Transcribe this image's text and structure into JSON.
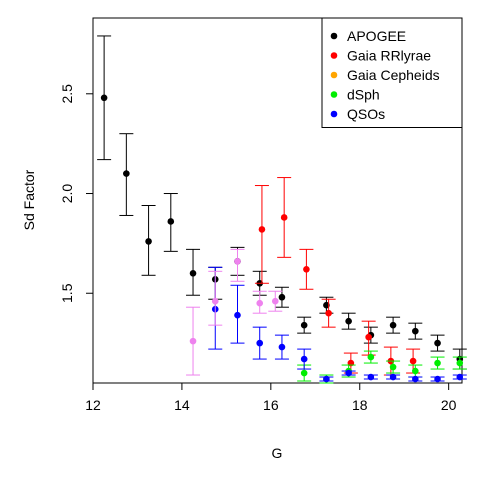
{
  "chart_data": {
    "type": "scatter",
    "title": "",
    "xlabel": "G",
    "ylabel": "Sd Factor",
    "xlim": [
      12,
      20.3
    ],
    "ylim": [
      1.05,
      2.88
    ],
    "xticks": [
      "12",
      "14",
      "16",
      "18",
      "20"
    ],
    "yticks": [
      "1.5",
      "2.0",
      "2.5"
    ],
    "legend_position": "top-right",
    "error_bars": true,
    "series": [
      {
        "name": "APOGEE",
        "color": "#000000",
        "points": [
          {
            "x": 12.25,
            "y": 2.48,
            "lo": 2.17,
            "hi": 2.79
          },
          {
            "x": 12.75,
            "y": 2.1,
            "lo": 1.89,
            "hi": 2.3
          },
          {
            "x": 13.25,
            "y": 1.76,
            "lo": 1.59,
            "hi": 1.94
          },
          {
            "x": 13.75,
            "y": 1.86,
            "lo": 1.71,
            "hi": 2.0
          },
          {
            "x": 14.25,
            "y": 1.6,
            "lo": 1.49,
            "hi": 1.72
          },
          {
            "x": 14.75,
            "y": 1.57,
            "lo": 1.47,
            "hi": 1.63
          },
          {
            "x": 15.25,
            "y": 1.66,
            "lo": 1.59,
            "hi": 1.73
          },
          {
            "x": 15.75,
            "y": 1.55,
            "lo": 1.49,
            "hi": 1.61
          },
          {
            "x": 16.25,
            "y": 1.48,
            "lo": 1.43,
            "hi": 1.53
          },
          {
            "x": 16.75,
            "y": 1.34,
            "lo": 1.3,
            "hi": 1.38
          },
          {
            "x": 17.25,
            "y": 1.44,
            "lo": 1.4,
            "hi": 1.48
          },
          {
            "x": 17.75,
            "y": 1.36,
            "lo": 1.32,
            "hi": 1.4
          },
          {
            "x": 18.25,
            "y": 1.29,
            "lo": 1.25,
            "hi": 1.33
          },
          {
            "x": 18.75,
            "y": 1.34,
            "lo": 1.3,
            "hi": 1.38
          },
          {
            "x": 19.25,
            "y": 1.31,
            "lo": 1.27,
            "hi": 1.35
          },
          {
            "x": 19.75,
            "y": 1.25,
            "lo": 1.21,
            "hi": 1.29
          },
          {
            "x": 20.25,
            "y": 1.17,
            "lo": 1.12,
            "hi": 1.22
          }
        ]
      },
      {
        "name": "Gaia RRlyrae",
        "color": "#ff0000",
        "points": [
          {
            "x": 15.8,
            "y": 1.82,
            "lo": 1.55,
            "hi": 2.04
          },
          {
            "x": 16.3,
            "y": 1.88,
            "lo": 1.68,
            "hi": 2.08
          },
          {
            "x": 16.8,
            "y": 1.62,
            "lo": 1.52,
            "hi": 1.72
          },
          {
            "x": 17.3,
            "y": 1.4,
            "lo": 1.33,
            "hi": 1.47
          },
          {
            "x": 17.8,
            "y": 1.15,
            "lo": 1.1,
            "hi": 1.2
          },
          {
            "x": 18.2,
            "y": 1.28,
            "lo": 1.19,
            "hi": 1.36
          },
          {
            "x": 18.7,
            "y": 1.16,
            "lo": 1.09,
            "hi": 1.23
          },
          {
            "x": 19.2,
            "y": 1.16,
            "lo": 1.1,
            "hi": 1.22
          }
        ]
      },
      {
        "name": "Gaia Cepheids",
        "color": "#ffa500",
        "points": []
      },
      {
        "name": "dSph",
        "color": "#00ee00",
        "points": [
          {
            "x": 16.75,
            "y": 1.1,
            "lo": 1.06,
            "hi": 1.14
          },
          {
            "x": 17.25,
            "y": 1.07,
            "lo": 1.05,
            "hi": 1.09
          },
          {
            "x": 17.75,
            "y": 1.11,
            "lo": 1.08,
            "hi": 1.14
          },
          {
            "x": 18.25,
            "y": 1.18,
            "lo": 1.15,
            "hi": 1.21
          },
          {
            "x": 18.75,
            "y": 1.13,
            "lo": 1.1,
            "hi": 1.16
          },
          {
            "x": 19.25,
            "y": 1.11,
            "lo": 1.08,
            "hi": 1.14
          },
          {
            "x": 19.75,
            "y": 1.15,
            "lo": 1.12,
            "hi": 1.18
          },
          {
            "x": 20.25,
            "y": 1.15,
            "lo": 1.12,
            "hi": 1.18
          }
        ]
      },
      {
        "name": "QSOs",
        "color": "#0000ff",
        "points": [
          {
            "x": 14.75,
            "y": 1.42,
            "lo": 1.22,
            "hi": 1.63
          },
          {
            "x": 15.25,
            "y": 1.39,
            "lo": 1.25,
            "hi": 1.54
          },
          {
            "x": 15.75,
            "y": 1.25,
            "lo": 1.17,
            "hi": 1.33
          },
          {
            "x": 16.25,
            "y": 1.23,
            "lo": 1.17,
            "hi": 1.29
          },
          {
            "x": 16.75,
            "y": 1.17,
            "lo": 1.12,
            "hi": 1.22
          },
          {
            "x": 17.25,
            "y": 1.07,
            "lo": 1.06,
            "hi": 1.08
          },
          {
            "x": 17.75,
            "y": 1.1,
            "lo": 1.09,
            "hi": 1.11
          },
          {
            "x": 18.25,
            "y": 1.08,
            "lo": 1.07,
            "hi": 1.09
          },
          {
            "x": 18.75,
            "y": 1.08,
            "lo": 1.07,
            "hi": 1.09
          },
          {
            "x": 19.25,
            "y": 1.07,
            "lo": 1.06,
            "hi": 1.08
          },
          {
            "x": 19.75,
            "y": 1.07,
            "lo": 1.06,
            "hi": 1.08
          },
          {
            "x": 20.25,
            "y": 1.08,
            "lo": 1.07,
            "hi": 1.09
          }
        ]
      },
      {
        "name": "",
        "color": "#ee82ee",
        "points": [
          {
            "x": 14.25,
            "y": 1.26,
            "lo": 1.09,
            "hi": 1.43
          },
          {
            "x": 14.75,
            "y": 1.46,
            "lo": 1.34,
            "hi": 1.61
          },
          {
            "x": 15.25,
            "y": 1.66,
            "lo": 1.56,
            "hi": 1.72
          },
          {
            "x": 15.75,
            "y": 1.45,
            "lo": 1.4,
            "hi": 1.51
          },
          {
            "x": 16.1,
            "y": 1.46,
            "lo": 1.41,
            "hi": 1.51
          }
        ]
      }
    ]
  }
}
